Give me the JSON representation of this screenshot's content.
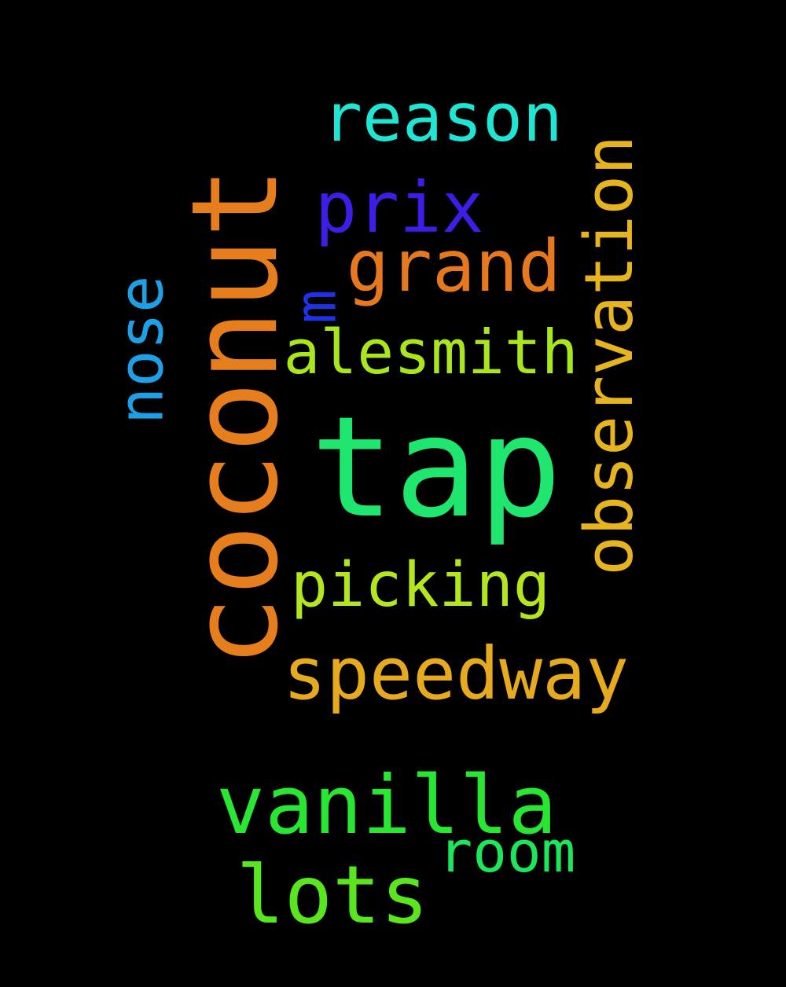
{
  "background_color": "#000000",
  "words": [
    {
      "id": "coconut",
      "text": "coconut",
      "color": "#E67E1E",
      "orientation": "vertical"
    },
    {
      "id": "tap",
      "text": "tap",
      "color": "#1EE66E",
      "orientation": "horizontal"
    },
    {
      "id": "observation",
      "text": "observation",
      "color": "#E6B41E",
      "orientation": "vertical"
    },
    {
      "id": "reason",
      "text": "reason",
      "color": "#1EE6D2",
      "orientation": "horizontal"
    },
    {
      "id": "prix",
      "text": "prix",
      "color": "#3C1EE6",
      "orientation": "horizontal"
    },
    {
      "id": "grand",
      "text": "grand",
      "color": "#E6781E",
      "orientation": "horizontal"
    },
    {
      "id": "m",
      "text": "m",
      "color": "#1E32E6",
      "orientation": "vertical"
    },
    {
      "id": "nose",
      "text": "nose",
      "color": "#1EA0E6",
      "orientation": "vertical"
    },
    {
      "id": "alesmith",
      "text": "alesmith",
      "color": "#AAE61E",
      "orientation": "horizontal"
    },
    {
      "id": "picking",
      "text": "picking",
      "color": "#B4E61E",
      "orientation": "horizontal"
    },
    {
      "id": "speedway",
      "text": "speedway",
      "color": "#E6AA1E",
      "orientation": "horizontal"
    },
    {
      "id": "vanilla",
      "text": "vanilla",
      "color": "#28E632",
      "orientation": "horizontal"
    },
    {
      "id": "room",
      "text": "room",
      "color": "#1EE65A",
      "orientation": "horizontal"
    },
    {
      "id": "lots",
      "text": "lots",
      "color": "#5AE61E",
      "orientation": "horizontal"
    }
  ]
}
